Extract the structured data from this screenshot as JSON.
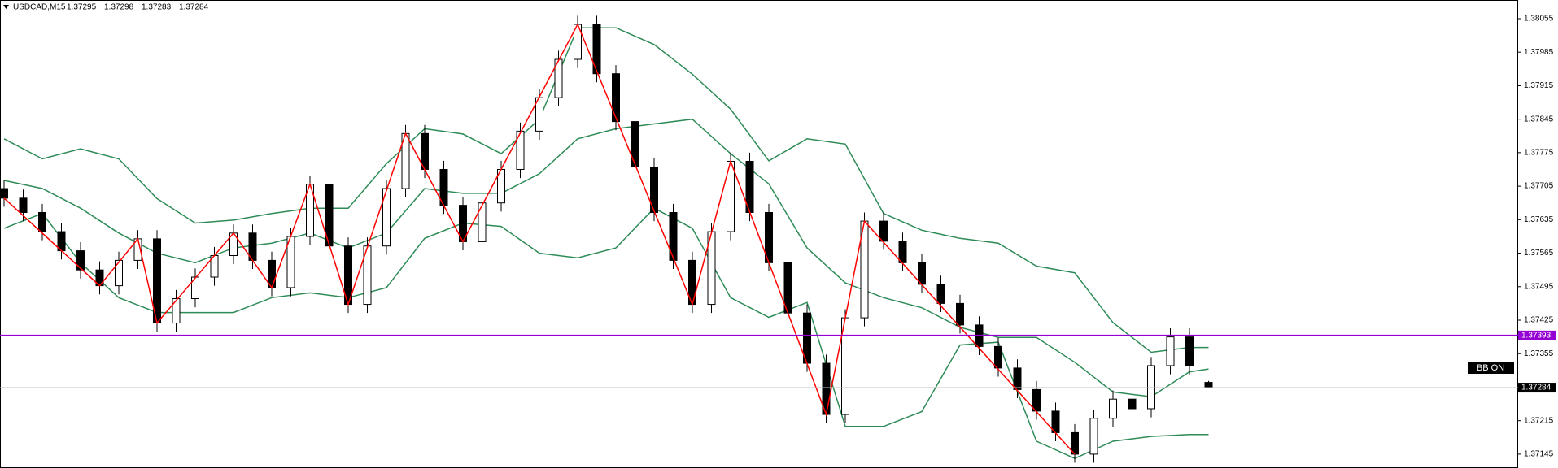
{
  "chart_data": {
    "type": "candlestick",
    "symbol": "USDCAD,M15",
    "ylim": [
      1.37116,
      1.38094
    ],
    "yticks": [
      1.38055,
      1.37985,
      1.37915,
      1.37845,
      1.37775,
      1.37705,
      1.37635,
      1.37565,
      1.37495,
      1.37425,
      1.37355,
      1.37215,
      1.37145
    ],
    "up_color": "#ffffff",
    "down_color": "#000000",
    "candles": [
      [
        1.377,
        1.37718,
        1.37662,
        1.3768
      ],
      [
        1.3768,
        1.37698,
        1.37632,
        1.3765
      ],
      [
        1.3765,
        1.37668,
        1.37592,
        1.3761
      ],
      [
        1.3761,
        1.37628,
        1.37552,
        1.3757
      ],
      [
        1.3757,
        1.37588,
        1.37512,
        1.3753
      ],
      [
        1.3753,
        1.37548,
        1.37479,
        1.37497
      ],
      [
        1.37497,
        1.37568,
        1.37479,
        1.3755
      ],
      [
        1.3755,
        1.37613,
        1.37532,
        1.37595
      ],
      [
        1.37595,
        1.37613,
        1.37401,
        1.37419
      ],
      [
        1.37419,
        1.37488,
        1.37401,
        1.3747
      ],
      [
        1.3747,
        1.37533,
        1.37452,
        1.37515
      ],
      [
        1.37515,
        1.37578,
        1.37497,
        1.3756
      ],
      [
        1.3756,
        1.37625,
        1.37542,
        1.37607
      ],
      [
        1.37607,
        1.37625,
        1.37532,
        1.3755
      ],
      [
        1.3755,
        1.37568,
        1.37475,
        1.37493
      ],
      [
        1.37493,
        1.37618,
        1.37475,
        1.376
      ],
      [
        1.376,
        1.37727,
        1.37582,
        1.37709
      ],
      [
        1.37709,
        1.37727,
        1.37562,
        1.3758
      ],
      [
        1.3758,
        1.37598,
        1.3744,
        1.37458
      ],
      [
        1.37458,
        1.37598,
        1.3744,
        1.3758
      ],
      [
        1.3758,
        1.37718,
        1.37562,
        1.377
      ],
      [
        1.377,
        1.37833,
        1.37682,
        1.37815
      ],
      [
        1.37815,
        1.37833,
        1.37722,
        1.3774
      ],
      [
        1.3774,
        1.37758,
        1.37647,
        1.37665
      ],
      [
        1.37665,
        1.37683,
        1.37571,
        1.37589
      ],
      [
        1.37589,
        1.37688,
        1.37571,
        1.3767
      ],
      [
        1.3767,
        1.37758,
        1.37652,
        1.3774
      ],
      [
        1.3774,
        1.37838,
        1.37722,
        1.3782
      ],
      [
        1.3782,
        1.37908,
        1.37802,
        1.3789
      ],
      [
        1.3789,
        1.37988,
        1.37872,
        1.3797
      ],
      [
        1.3797,
        1.38061,
        1.37952,
        1.38043
      ],
      [
        1.38043,
        1.38061,
        1.37922,
        1.3794
      ],
      [
        1.3794,
        1.37958,
        1.37822,
        1.3784
      ],
      [
        1.3784,
        1.37858,
        1.37727,
        1.37745
      ],
      [
        1.37745,
        1.37763,
        1.37632,
        1.3765
      ],
      [
        1.3765,
        1.37668,
        1.37532,
        1.3755
      ],
      [
        1.3755,
        1.37568,
        1.3744,
        1.37458
      ],
      [
        1.37458,
        1.37628,
        1.3744,
        1.3761
      ],
      [
        1.3761,
        1.37775,
        1.37592,
        1.37757
      ],
      [
        1.37757,
        1.37775,
        1.37632,
        1.3765
      ],
      [
        1.3765,
        1.37668,
        1.37527,
        1.37545
      ],
      [
        1.37545,
        1.37563,
        1.37422,
        1.3744
      ],
      [
        1.3744,
        1.37458,
        1.37317,
        1.37335
      ],
      [
        1.37335,
        1.37353,
        1.3721,
        1.37228
      ],
      [
        1.37228,
        1.37448,
        1.3721,
        1.3743
      ],
      [
        1.3743,
        1.3765,
        1.37412,
        1.37632
      ],
      [
        1.37632,
        1.3765,
        1.37572,
        1.3759
      ],
      [
        1.3759,
        1.37608,
        1.37527,
        1.37545
      ],
      [
        1.37545,
        1.37563,
        1.37482,
        1.375
      ],
      [
        1.375,
        1.37518,
        1.37442,
        1.3746
      ],
      [
        1.3746,
        1.37478,
        1.37397,
        1.37415
      ],
      [
        1.37415,
        1.37433,
        1.37352,
        1.3737
      ],
      [
        1.3737,
        1.37388,
        1.37307,
        1.37325
      ],
      [
        1.37325,
        1.37343,
        1.37262,
        1.3728
      ],
      [
        1.3728,
        1.37298,
        1.37217,
        1.37235
      ],
      [
        1.37235,
        1.37253,
        1.37172,
        1.3719
      ],
      [
        1.3719,
        1.37208,
        1.37127,
        1.37145
      ],
      [
        1.37145,
        1.37238,
        1.37127,
        1.3722
      ],
      [
        1.3722,
        1.37278,
        1.37202,
        1.3726
      ],
      [
        1.3726,
        1.37278,
        1.37222,
        1.3724
      ],
      [
        1.3724,
        1.37348,
        1.37222,
        1.3733
      ],
      [
        1.3733,
        1.37408,
        1.37312,
        1.3739
      ],
      [
        1.3739,
        1.37408,
        1.37312,
        1.3733
      ],
      [
        1.37295,
        1.37298,
        1.37283,
        1.37284
      ]
    ],
    "bands": {
      "color": "#2e8b57",
      "x": [
        0,
        2,
        4,
        6,
        8,
        10,
        12,
        14,
        16,
        18,
        20,
        22,
        24,
        26,
        28,
        30,
        32,
        34,
        36,
        38,
        40,
        42,
        44,
        46,
        48,
        50,
        52,
        54,
        56,
        58,
        60,
        62,
        63
      ],
      "upper": [
        1.37804,
        1.37762,
        1.37783,
        1.37762,
        1.37679,
        1.37628,
        1.37634,
        1.37648,
        1.37659,
        1.37659,
        1.37752,
        1.37825,
        1.37814,
        1.37773,
        1.37845,
        1.38036,
        1.38036,
        1.38001,
        1.37939,
        1.37866,
        1.37758,
        1.37804,
        1.37793,
        1.37648,
        1.37613,
        1.37596,
        1.37586,
        1.37538,
        1.37524,
        1.3742,
        1.37358,
        1.37368,
        1.37368
      ],
      "middle": [
        1.37717,
        1.377,
        1.37659,
        1.37607,
        1.37565,
        1.37545,
        1.37576,
        1.37586,
        1.37607,
        1.37576,
        1.37607,
        1.377,
        1.3769,
        1.3769,
        1.37731,
        1.37804,
        1.37825,
        1.37835,
        1.37845,
        1.37773,
        1.3771,
        1.37576,
        1.37503,
        1.37472,
        1.37451,
        1.3741,
        1.37389,
        1.37389,
        1.37337,
        1.37275,
        1.37265,
        1.37317,
        1.37323
      ],
      "lower": [
        1.37617,
        1.37648,
        1.37545,
        1.37472,
        1.37441,
        1.37441,
        1.37441,
        1.37472,
        1.37482,
        1.37472,
        1.37493,
        1.37596,
        1.37628,
        1.37621,
        1.37565,
        1.37555,
        1.37576,
        1.37659,
        1.37617,
        1.37472,
        1.37431,
        1.37462,
        1.37203,
        1.37203,
        1.37234,
        1.37373,
        1.37379,
        1.37172,
        1.37136,
        1.37172,
        1.37182,
        1.37186,
        1.37186
      ]
    },
    "zigzag": {
      "color": "#ff0000",
      "x": [
        0,
        5,
        7,
        8,
        12,
        14,
        16,
        18,
        21,
        24,
        30,
        36,
        38,
        43,
        45,
        56
      ],
      "y": [
        1.3768,
        1.37497,
        1.37595,
        1.37419,
        1.37607,
        1.37493,
        1.37709,
        1.37458,
        1.37815,
        1.37589,
        1.38043,
        1.37458,
        1.37757,
        1.37228,
        1.37632,
        1.37145
      ]
    },
    "hline": 1.37393,
    "hline_color": "#9400d3",
    "indicator_label": "BB ON"
  }
}
